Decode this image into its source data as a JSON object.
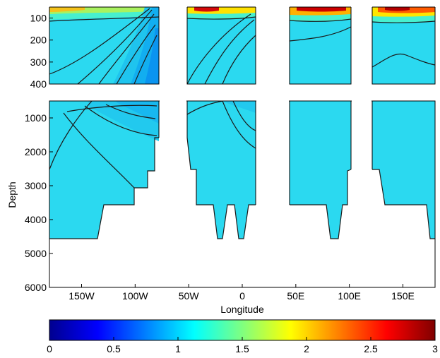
{
  "chart_data": [
    {
      "type": "heatmap",
      "xlabel": "Longitude",
      "ylabel": "Depth",
      "xlim": [
        -180,
        180
      ],
      "x_ticks": [
        {
          "value": -150,
          "label": "150W"
        },
        {
          "value": -100,
          "label": "100W"
        },
        {
          "value": -50,
          "label": "50W"
        },
        {
          "value": 0,
          "label": "0"
        },
        {
          "value": 50,
          "label": "50E"
        },
        {
          "value": 100,
          "label": "100E"
        },
        {
          "value": 150,
          "label": "150E"
        }
      ],
      "panels": [
        {
          "name": "upper",
          "ylim": [
            50,
            400
          ],
          "y_ticks": [
            100,
            200,
            300,
            400
          ]
        },
        {
          "name": "lower",
          "ylim": [
            500,
            6000
          ],
          "y_ticks": [
            1000,
            2000,
            3000,
            4000,
            5000,
            6000
          ]
        }
      ],
      "land_gaps": [
        {
          "lon_range": [
            -78,
            -56
          ]
        },
        {
          "lon_range": [
            10,
            37
          ]
        },
        {
          "lon_range": [
            92,
            108
          ]
        }
      ],
      "bottom_depth_profile": [
        {
          "lon_range": [
            -180,
            -138
          ],
          "depth": 4500
        },
        {
          "lon_range": [
            -133,
            -106
          ],
          "depth": 3500
        },
        {
          "lon_range": [
            -101,
            -91
          ],
          "depth": 3000
        },
        {
          "lon_range": [
            -88,
            -83
          ],
          "depth": 2500
        },
        {
          "lon_range": [
            -56,
            -45
          ],
          "depth": 3500
        },
        {
          "lon_range": [
            -22,
            0
          ],
          "depth": 3500
        },
        {
          "lon_range": [
            37,
            42
          ],
          "depth": 3500
        },
        {
          "lon_range": [
            70,
            84
          ],
          "depth": 4500
        },
        {
          "lon_range": [
            113,
            153
          ],
          "depth": 3500
        },
        {
          "lon_range": [
            155,
            180
          ],
          "depth": 4500
        }
      ],
      "background_value": 1.2,
      "color_scale": {
        "colormap": "jet",
        "range": [
          0,
          3
        ],
        "ticks": [
          0,
          0.5,
          1,
          1.5,
          2,
          2.5,
          3
        ],
        "tick_labels": [
          "0",
          "0.5",
          "1",
          "1.5",
          "2",
          "2.5",
          "3"
        ]
      }
    }
  ]
}
